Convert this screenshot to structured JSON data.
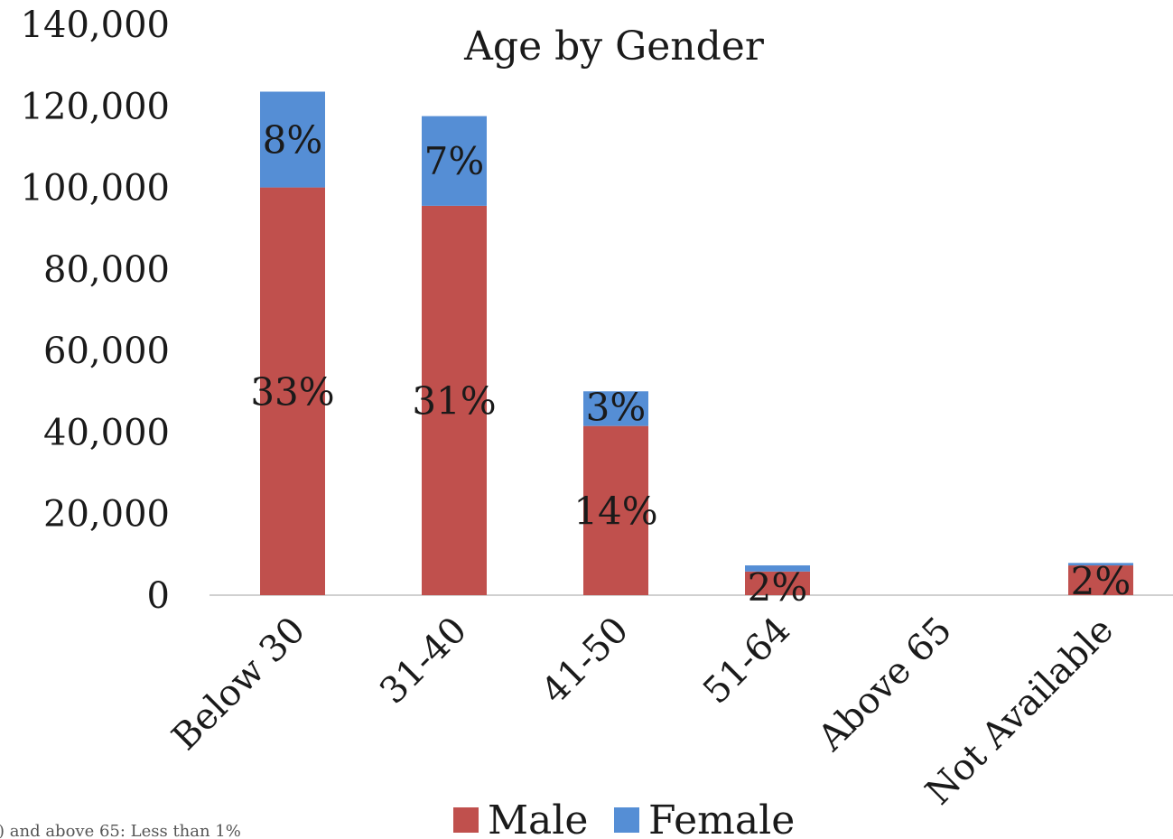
{
  "chart_data": {
    "type": "bar",
    "stacked": true,
    "title": "Age by Gender",
    "xlabel": "",
    "ylabel": "",
    "categories": [
      "Below 30",
      "31-40",
      "41-50",
      "51-64",
      "Above 65",
      "Not Available"
    ],
    "series": [
      {
        "name": "Male",
        "color": "#C0504D",
        "values": [
          100000,
          95500,
          41500,
          5800,
          0,
          7300
        ],
        "labels": [
          "33%",
          "31%",
          "14%",
          "2%",
          "",
          "2%"
        ]
      },
      {
        "name": "Female",
        "color": "#558ED5",
        "values": [
          23500,
          22000,
          8500,
          1500,
          0,
          600
        ],
        "labels": [
          "8%",
          "7%",
          "3%",
          "",
          "",
          ""
        ]
      }
    ],
    "ylim": [
      0,
      140000
    ],
    "yticks": [
      0,
      20000,
      40000,
      60000,
      80000,
      100000,
      120000,
      140000
    ],
    "ytick_labels": [
      "0",
      "20,000",
      "40,000",
      "60,000",
      "80,000",
      "100,000",
      "120,000",
      "140,000"
    ],
    "grid": false,
    "legend_position": "bottom",
    "footnote": ") and above 65: Less than 1%"
  }
}
